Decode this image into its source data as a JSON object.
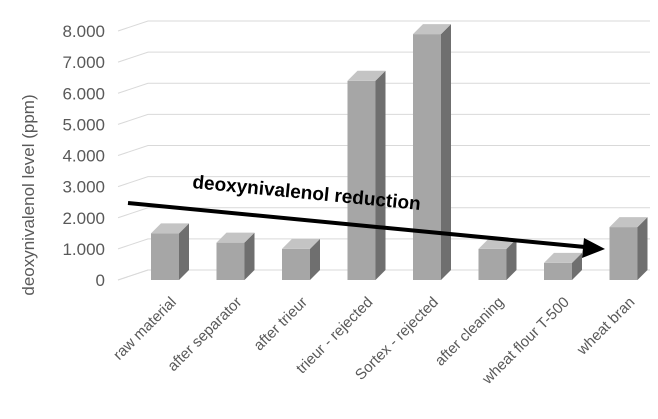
{
  "chart_data": {
    "type": "bar",
    "categories": [
      "raw material",
      "after separator",
      "after trieur",
      "trieur - rejected",
      "Sortex - rejected",
      "after cleaning",
      "wheat flour T-500",
      "wheat bran"
    ],
    "values": [
      1.5,
      1.2,
      1.0,
      6.4,
      7.9,
      1.0,
      0.55,
      1.7
    ],
    "ylabel": "deoxynivalenol level (ppm)",
    "xlabel": "",
    "title": "",
    "ylim": [
      0,
      8
    ],
    "yticks": [
      "0",
      "1.000",
      "2.000",
      "3.000",
      "4.000",
      "5.000",
      "6.000",
      "7.000",
      "8.000"
    ],
    "annotation": "deoxynivalenol reduction",
    "grid": true,
    "colors": {
      "bar_front": "#a6a6a6",
      "bar_side": "#6f6f6f",
      "bar_top": "#c4c4c4",
      "arrow": "#000000",
      "grid": "#d9d9d9"
    }
  }
}
